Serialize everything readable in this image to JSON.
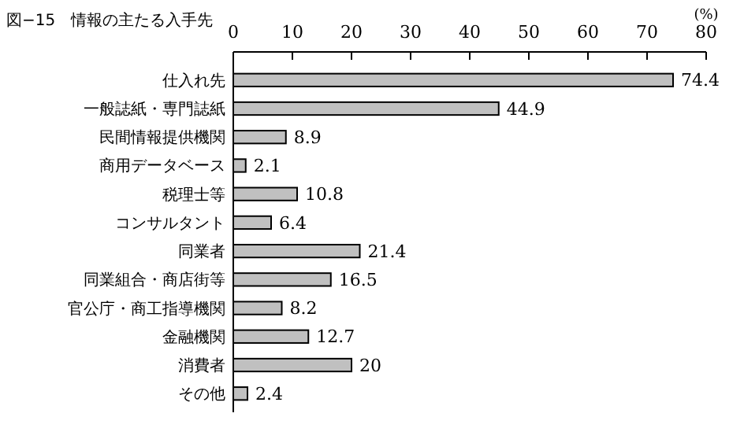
{
  "chart_data": {
    "type": "bar",
    "orientation": "horizontal",
    "title": "図−15　情報の主たる入手先",
    "xlabel": "(%)",
    "categories": [
      "仕入れ先",
      "一般誌紙・専門誌紙",
      "民間情報提供機関",
      "商用データベース",
      "税理士等",
      "コンサルタント",
      "同業者",
      "同業組合・商店街等",
      "官公庁・商工指導機関",
      "金融機関",
      "消費者",
      "その他"
    ],
    "values": [
      74.4,
      44.9,
      8.9,
      2.1,
      10.8,
      6.4,
      21.4,
      16.5,
      8.2,
      12.7,
      20,
      2.4
    ],
    "color": "#c0c0c0",
    "xlim": [
      0,
      80
    ],
    "xticks": [
      0,
      10,
      20,
      30,
      40,
      50,
      60,
      70,
      80
    ],
    "data_labels": true
  }
}
